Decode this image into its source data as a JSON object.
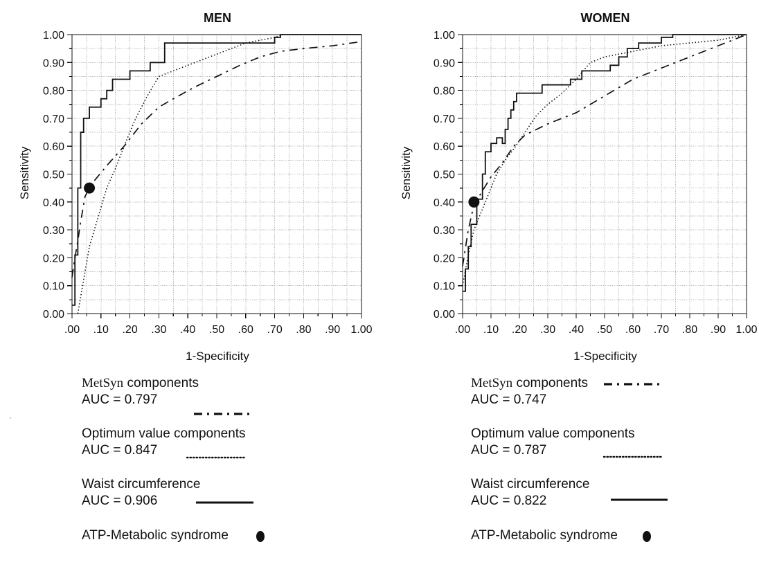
{
  "chart_data": [
    {
      "type": "line",
      "title": "MEN",
      "xlabel": "1-Specificity",
      "ylabel": "Sensitivity",
      "xlim": [
        0,
        1
      ],
      "ylim": [
        0,
        1
      ],
      "grid": true,
      "x_tick_labels": [
        ".00",
        ".10",
        ".20",
        ".30",
        ".40",
        ".50",
        ".60",
        ".70",
        ".80",
        ".90",
        "1.00"
      ],
      "y_tick_labels": [
        "0.00",
        "0.10",
        "0.20",
        "0.30",
        "0.40",
        "0.50",
        "0.60",
        "0.70",
        "0.80",
        "0.90",
        "1.00"
      ],
      "series": [
        {
          "name": "MetSyn components",
          "style": "dash-dot",
          "color": "#111111",
          "x": [
            0.0,
            0.01,
            0.02,
            0.03,
            0.045,
            0.06,
            0.08,
            0.12,
            0.18,
            0.24,
            0.3,
            0.35,
            0.42,
            0.5,
            0.58,
            0.65,
            0.72,
            0.8,
            0.9,
            1.0
          ],
          "y": [
            0.13,
            0.2,
            0.26,
            0.33,
            0.42,
            0.45,
            0.48,
            0.53,
            0.6,
            0.68,
            0.74,
            0.77,
            0.81,
            0.85,
            0.89,
            0.92,
            0.94,
            0.95,
            0.96,
            0.975
          ]
        },
        {
          "name": "Optimum value components",
          "style": "dotted",
          "color": "#111111",
          "x": [
            0.02,
            0.04,
            0.06,
            0.08,
            0.1,
            0.12,
            0.15,
            0.18,
            0.22,
            0.26,
            0.3,
            0.35,
            0.4,
            0.45,
            0.5,
            0.55,
            0.6,
            0.65,
            0.7,
            0.73
          ],
          "y": [
            0.0,
            0.12,
            0.24,
            0.31,
            0.38,
            0.45,
            0.52,
            0.6,
            0.7,
            0.78,
            0.85,
            0.87,
            0.89,
            0.91,
            0.93,
            0.95,
            0.97,
            0.98,
            0.99,
            1.0
          ]
        },
        {
          "name": "Waist circumference",
          "style": "solid",
          "color": "#111111",
          "x": [
            0.0,
            0.01,
            0.01,
            0.02,
            0.02,
            0.03,
            0.03,
            0.04,
            0.04,
            0.06,
            0.06,
            0.08,
            0.08,
            0.1,
            0.1,
            0.12,
            0.12,
            0.14,
            0.14,
            0.16,
            0.16,
            0.2,
            0.2,
            0.22,
            0.22,
            0.27,
            0.27,
            0.32,
            0.32,
            0.7,
            0.7,
            0.72,
            0.72,
            1.0
          ],
          "y": [
            0.03,
            0.03,
            0.21,
            0.21,
            0.45,
            0.45,
            0.65,
            0.65,
            0.7,
            0.7,
            0.74,
            0.74,
            0.74,
            0.74,
            0.77,
            0.77,
            0.8,
            0.8,
            0.84,
            0.84,
            0.84,
            0.84,
            0.87,
            0.87,
            0.87,
            0.87,
            0.9,
            0.9,
            0.97,
            0.97,
            0.99,
            0.99,
            1.0,
            1.0
          ]
        }
      ],
      "markers": [
        {
          "name": "ATP-Metabolic syndrome",
          "x": 0.06,
          "y": 0.45,
          "shape": "filled-circle",
          "color": "#111111"
        }
      ],
      "legend": [
        {
          "label": "MetSyn components",
          "auc": "AUC = 0.797",
          "style": "dash-dot"
        },
        {
          "label": "Optimum value components",
          "auc": "AUC = 0.847",
          "style": "dotted"
        },
        {
          "label": "Waist circumference",
          "auc": "AUC = 0.906",
          "style": "solid"
        },
        {
          "label": "ATP-Metabolic syndrome",
          "auc": "",
          "style": "marker"
        }
      ]
    },
    {
      "type": "line",
      "title": "WOMEN",
      "xlabel": "1-Specificity",
      "ylabel": "Sensitivity",
      "xlim": [
        0,
        1
      ],
      "ylim": [
        0,
        1
      ],
      "grid": true,
      "x_tick_labels": [
        ".00",
        ".10",
        ".20",
        ".30",
        ".40",
        ".50",
        ".60",
        ".70",
        ".80",
        ".90",
        "1.00"
      ],
      "y_tick_labels": [
        "0.00",
        "0.10",
        "0.20",
        "0.30",
        "0.40",
        "0.50",
        "0.60",
        "0.70",
        "0.80",
        "0.90",
        "1.00"
      ],
      "series": [
        {
          "name": "MetSyn components",
          "style": "dash-dot",
          "color": "#111111",
          "x": [
            0.0,
            0.02,
            0.04,
            0.07,
            0.1,
            0.14,
            0.18,
            0.22,
            0.3,
            0.4,
            0.5,
            0.6,
            0.7,
            0.8,
            0.9,
            1.0
          ],
          "y": [
            0.17,
            0.3,
            0.39,
            0.44,
            0.49,
            0.54,
            0.6,
            0.64,
            0.68,
            0.72,
            0.78,
            0.84,
            0.88,
            0.92,
            0.96,
            1.0
          ]
        },
        {
          "name": "Optimum value components",
          "style": "dotted",
          "color": "#111111",
          "x": [
            0.0,
            0.02,
            0.04,
            0.06,
            0.08,
            0.1,
            0.12,
            0.15,
            0.18,
            0.22,
            0.26,
            0.3,
            0.35,
            0.4,
            0.45,
            0.5,
            0.6,
            0.7,
            0.8,
            0.9,
            1.0
          ],
          "y": [
            0.1,
            0.21,
            0.3,
            0.35,
            0.4,
            0.45,
            0.5,
            0.55,
            0.59,
            0.65,
            0.71,
            0.75,
            0.79,
            0.84,
            0.9,
            0.92,
            0.94,
            0.96,
            0.97,
            0.98,
            1.0
          ]
        },
        {
          "name": "Waist circumference",
          "style": "solid",
          "color": "#111111",
          "x": [
            0.0,
            0.01,
            0.01,
            0.02,
            0.02,
            0.03,
            0.03,
            0.05,
            0.05,
            0.07,
            0.07,
            0.08,
            0.08,
            0.1,
            0.1,
            0.12,
            0.12,
            0.14,
            0.14,
            0.15,
            0.15,
            0.16,
            0.16,
            0.17,
            0.17,
            0.18,
            0.18,
            0.19,
            0.19,
            0.22,
            0.22,
            0.28,
            0.28,
            0.38,
            0.38,
            0.42,
            0.42,
            0.52,
            0.52,
            0.55,
            0.55,
            0.58,
            0.58,
            0.62,
            0.62,
            0.7,
            0.7,
            0.74,
            0.74,
            1.0
          ],
          "y": [
            0.08,
            0.08,
            0.16,
            0.16,
            0.24,
            0.24,
            0.32,
            0.32,
            0.41,
            0.41,
            0.5,
            0.5,
            0.58,
            0.58,
            0.61,
            0.61,
            0.63,
            0.63,
            0.61,
            0.61,
            0.66,
            0.66,
            0.7,
            0.7,
            0.73,
            0.73,
            0.76,
            0.76,
            0.79,
            0.79,
            0.79,
            0.79,
            0.82,
            0.82,
            0.84,
            0.84,
            0.87,
            0.87,
            0.89,
            0.89,
            0.92,
            0.92,
            0.95,
            0.95,
            0.97,
            0.97,
            0.99,
            0.99,
            1.0,
            1.0
          ]
        }
      ],
      "markers": [
        {
          "name": "ATP-Metabolic syndrome",
          "x": 0.04,
          "y": 0.4,
          "shape": "filled-circle",
          "color": "#111111"
        }
      ],
      "legend": [
        {
          "label": "MetSyn components",
          "auc": "AUC = 0.747",
          "style": "dash-dot"
        },
        {
          "label": "Optimum value components",
          "auc": "AUC = 0.787",
          "style": "dotted"
        },
        {
          "label": "Waist circumference",
          "auc": "AUC = 0.822",
          "style": "solid"
        },
        {
          "label": "ATP-Metabolic syndrome",
          "auc": "",
          "style": "marker"
        }
      ]
    }
  ]
}
